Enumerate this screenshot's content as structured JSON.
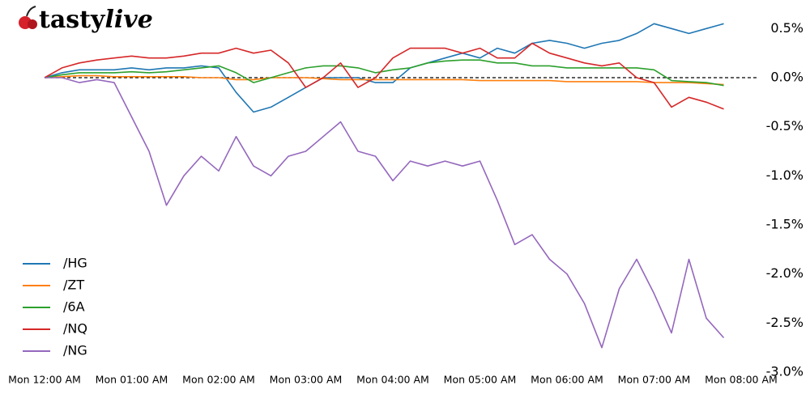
{
  "logo_prefix": "tasty",
  "logo_suffix": "live",
  "chart_data": {
    "type": "line",
    "x": [
      0,
      0.2,
      0.4,
      0.6,
      0.8,
      1.0,
      1.2,
      1.4,
      1.6,
      1.8,
      2.0,
      2.2,
      2.4,
      2.6,
      2.8,
      3.0,
      3.2,
      3.4,
      3.6,
      3.8,
      4.0,
      4.2,
      4.4,
      4.6,
      4.8,
      5.0,
      5.2,
      5.4,
      5.6,
      5.8,
      6.0,
      6.2,
      6.4,
      6.6,
      6.8,
      7.0,
      7.2,
      7.4,
      7.6,
      7.8
    ],
    "series": [
      {
        "name": "/HG",
        "color": "#1f77b4",
        "values": [
          0,
          0.05,
          0.08,
          0.08,
          0.08,
          0.1,
          0.08,
          0.1,
          0.1,
          0.12,
          0.1,
          -0.15,
          -0.35,
          -0.3,
          -0.2,
          -0.1,
          0.0,
          0.0,
          0.0,
          -0.05,
          -0.05,
          0.1,
          0.15,
          0.2,
          0.25,
          0.2,
          0.3,
          0.25,
          0.35,
          0.38,
          0.35,
          0.3,
          0.35,
          0.38,
          0.45,
          0.55,
          0.5,
          0.45,
          0.5,
          0.55
        ]
      },
      {
        "name": "/ZT",
        "color": "#ff7f0e",
        "values": [
          0,
          0.01,
          0.02,
          0.02,
          0.01,
          0.01,
          0.01,
          0.01,
          0.01,
          0.0,
          0.0,
          -0.02,
          -0.02,
          0,
          0,
          0,
          -0.01,
          -0.02,
          -0.02,
          -0.02,
          -0.02,
          -0.02,
          -0.02,
          -0.02,
          -0.02,
          -0.03,
          -0.03,
          -0.03,
          -0.03,
          -0.03,
          -0.04,
          -0.04,
          -0.04,
          -0.04,
          -0.04,
          -0.05,
          -0.05,
          -0.05,
          -0.06,
          -0.07
        ]
      },
      {
        "name": "/6A",
        "color": "#2ca02c",
        "values": [
          0,
          0.03,
          0.05,
          0.05,
          0.05,
          0.06,
          0.05,
          0.06,
          0.08,
          0.1,
          0.12,
          0.05,
          -0.05,
          0,
          0.05,
          0.1,
          0.12,
          0.12,
          0.1,
          0.05,
          0.08,
          0.1,
          0.15,
          0.17,
          0.18,
          0.18,
          0.15,
          0.15,
          0.12,
          0.12,
          0.1,
          0.1,
          0.1,
          0.1,
          0.1,
          0.08,
          -0.03,
          -0.04,
          -0.05,
          -0.08
        ]
      },
      {
        "name": "/NQ",
        "color": "#d62728",
        "values": [
          0,
          0.1,
          0.15,
          0.18,
          0.2,
          0.22,
          0.2,
          0.2,
          0.22,
          0.25,
          0.25,
          0.3,
          0.25,
          0.28,
          0.15,
          -0.1,
          0.0,
          0.15,
          -0.1,
          0.0,
          0.2,
          0.3,
          0.3,
          0.3,
          0.25,
          0.3,
          0.2,
          0.2,
          0.35,
          0.25,
          0.2,
          0.15,
          0.12,
          0.15,
          0.0,
          -0.05,
          -0.3,
          -0.2,
          -0.25,
          -0.32
        ]
      },
      {
        "name": "/NG",
        "color": "#9467bd",
        "values": [
          0,
          0,
          -0.05,
          -0.02,
          -0.05,
          -0.4,
          -0.75,
          -1.3,
          -1.0,
          -0.8,
          -0.95,
          -0.6,
          -0.9,
          -1.0,
          -0.8,
          -0.75,
          -0.6,
          -0.45,
          -0.75,
          -0.8,
          -1.05,
          -0.85,
          -0.9,
          -0.85,
          -0.9,
          -0.85,
          -1.25,
          -1.7,
          -1.6,
          -1.85,
          -2.0,
          -2.3,
          -2.75,
          -2.15,
          -1.85,
          -2.2,
          -2.6,
          -1.85,
          -2.45,
          -2.65
        ]
      }
    ],
    "xlim": [
      0,
      8
    ],
    "xticks": [
      {
        "value": 0,
        "label": "Mon 12:00 AM"
      },
      {
        "value": 1,
        "label": "Mon 01:00 AM"
      },
      {
        "value": 2,
        "label": "Mon 02:00 AM"
      },
      {
        "value": 3,
        "label": "Mon 03:00 AM"
      },
      {
        "value": 4,
        "label": "Mon 04:00 AM"
      },
      {
        "value": 5,
        "label": "Mon 05:00 AM"
      },
      {
        "value": 6,
        "label": "Mon 06:00 AM"
      },
      {
        "value": 7,
        "label": "Mon 07:00 AM"
      },
      {
        "value": 8,
        "label": "Mon 08:00 AM"
      }
    ],
    "ylim": [
      -3.0,
      0.75
    ],
    "yticks": [
      {
        "value": 0.5,
        "label": "0.5%"
      },
      {
        "value": 0.0,
        "label": "0.0%"
      },
      {
        "value": -0.5,
        "label": "-0.5%"
      },
      {
        "value": -1.0,
        "label": "-1.0%"
      },
      {
        "value": -1.5,
        "label": "-1.5%"
      },
      {
        "value": -2.0,
        "label": "-2.0%"
      },
      {
        "value": -2.5,
        "label": "-2.5%"
      },
      {
        "value": -3.0,
        "label": "-3.0%"
      }
    ],
    "legend": "lower left"
  }
}
